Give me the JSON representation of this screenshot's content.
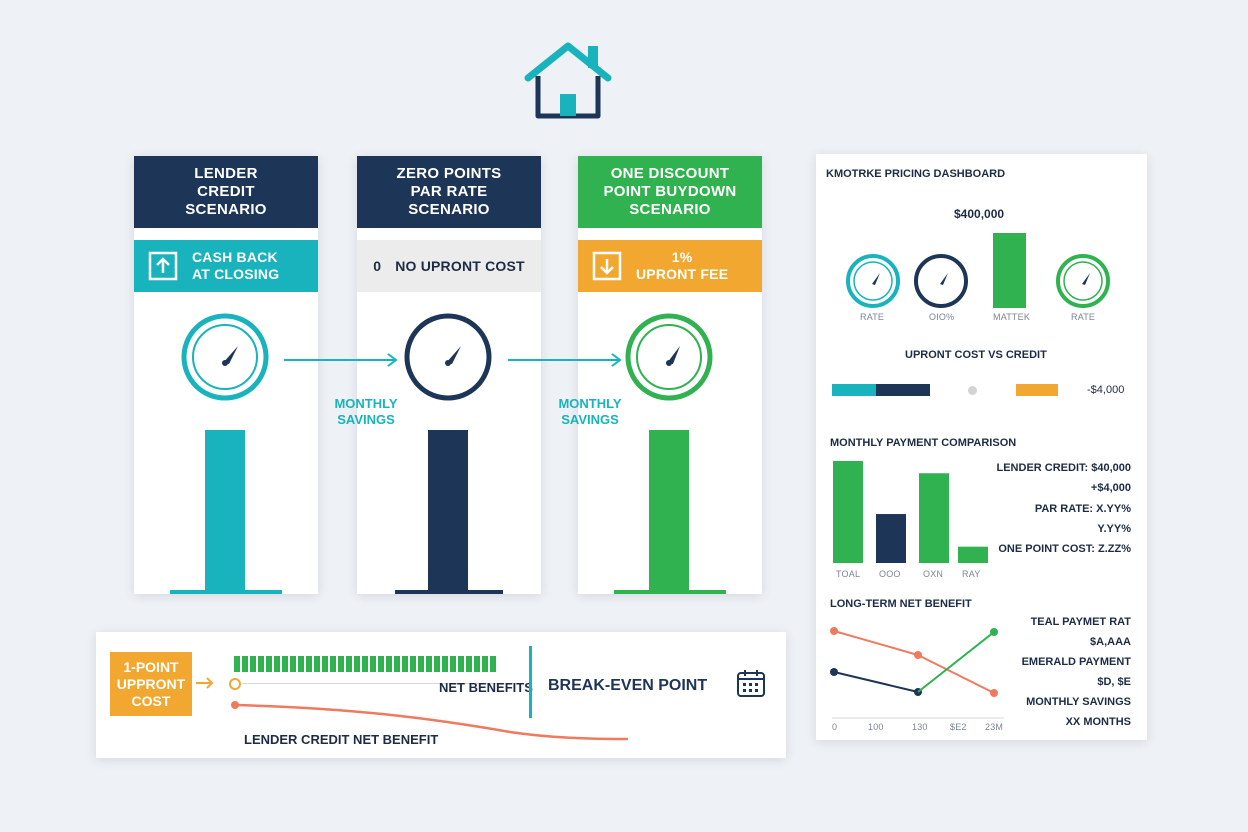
{
  "colors": {
    "navy": "#1d3557",
    "teal": "#18b3bc",
    "green": "#2fb24f",
    "orange": "#f2a830",
    "coral": "#ef7a5f",
    "gray": "#ececec"
  },
  "header": {
    "icon": "house-icon"
  },
  "cards": [
    {
      "title": [
        "LENDER",
        "CREDIT",
        "SCENARIO"
      ],
      "sub_icon": "arrow-up-icon",
      "sub": [
        "CASH BACK",
        "AT CLOSING"
      ]
    },
    {
      "title": [
        "ZERO POINTS",
        "PAR RATE",
        "SCENARIO"
      ],
      "sub_num": "0",
      "sub": [
        "NO UPRONT COST"
      ]
    },
    {
      "title": [
        "ONE DISCOUNT",
        "POINT BUYDOWN",
        "SCENARIO"
      ],
      "sub_icon": "arrow-down-icon",
      "sub": [
        "1%",
        "UPRONT FEE"
      ]
    }
  ],
  "arrows": [
    {
      "label": [
        "MONTHLY",
        "SAVINGS"
      ]
    },
    {
      "label": [
        "MONTHLY",
        "SAVINGS"
      ]
    }
  ],
  "timeline": {
    "cost_box": [
      "1-POINT",
      "UPPRONT",
      "COST"
    ],
    "net_benefits": "NET BENEFITS",
    "break_even": "BREAK-EVEN POINT",
    "lender_credit": "LENDER CREDIT NET BENEFIT",
    "icon": "calendar-icon"
  },
  "dashboard": {
    "title": "KMOTRKE PRICING DASHBOARD",
    "amount": "$400,000",
    "gauges": [
      "RATE",
      "OIO%",
      "MATTEK",
      "RATE"
    ],
    "upfront_title": "UPRONT COST VS CREDIT",
    "upfront_value": "-$4,000",
    "monthly_title": "MONTHLY PAYMENT COMPARISON",
    "monthly_labels": [
      "LENDER CREDIT: $40,000",
      "+$4,000",
      "PAR RATE: X.YY%",
      "Y.YY%",
      "ONE POINT COST: Z.ZZ%"
    ],
    "bar_labels": [
      "TOAL",
      "OOO",
      "OXN",
      "RAY"
    ],
    "bar_values": [
      100,
      48,
      88,
      16
    ],
    "longterm_title": "LONG-TERM NET BENEFIT",
    "longterm_labels": [
      "TEAL PAYMET RAT",
      "$A,AAA",
      "EMERALD PAYMENT",
      "$D, $E",
      "MONTHLY SAVINGS",
      "XX MONTHS"
    ],
    "x_ticks": [
      "0",
      "100",
      "130",
      "$E2",
      "23M"
    ]
  }
}
